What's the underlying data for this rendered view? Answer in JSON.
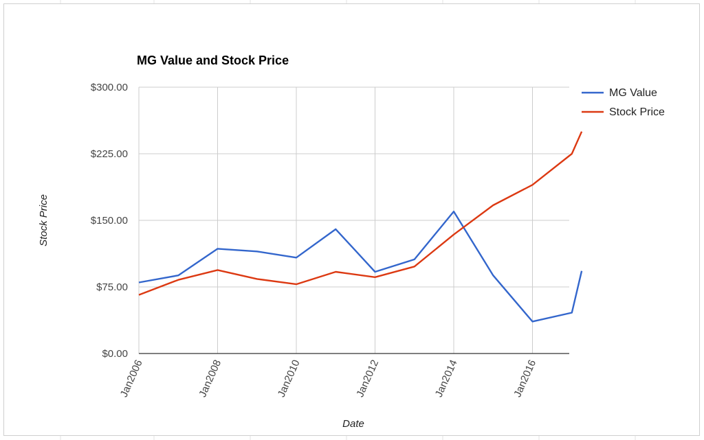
{
  "chart_data": {
    "type": "line",
    "title": "MG Value and Stock Price",
    "xlabel": "Date",
    "ylabel": "Stock Price",
    "x": [
      "2006-01",
      "2007-01",
      "2008-01",
      "2009-01",
      "2010-01",
      "2011-01",
      "2012-01",
      "2013-01",
      "2014-01",
      "2015-01",
      "2016-01",
      "2017-01",
      "2017-04"
    ],
    "x_ticks": [
      "Jan2006",
      "Jan2008",
      "Jan2010",
      "Jan2012",
      "Jan2014",
      "Jan2016"
    ],
    "y_ticks": [
      "$0.00",
      "$75.00",
      "$150.00",
      "$225.00",
      "$300.00"
    ],
    "ylim": [
      0,
      300
    ],
    "grid": true,
    "legend_position": "right",
    "series": [
      {
        "name": "MG Value",
        "color": "#3366cc",
        "values": [
          80,
          88,
          118,
          115,
          108,
          140,
          92,
          106,
          160,
          88,
          36,
          46,
          93
        ]
      },
      {
        "name": "Stock Price",
        "color": "#dc3912",
        "values": [
          66,
          83,
          94,
          84,
          78,
          92,
          86,
          98,
          134,
          167,
          190,
          225,
          250
        ]
      }
    ]
  }
}
